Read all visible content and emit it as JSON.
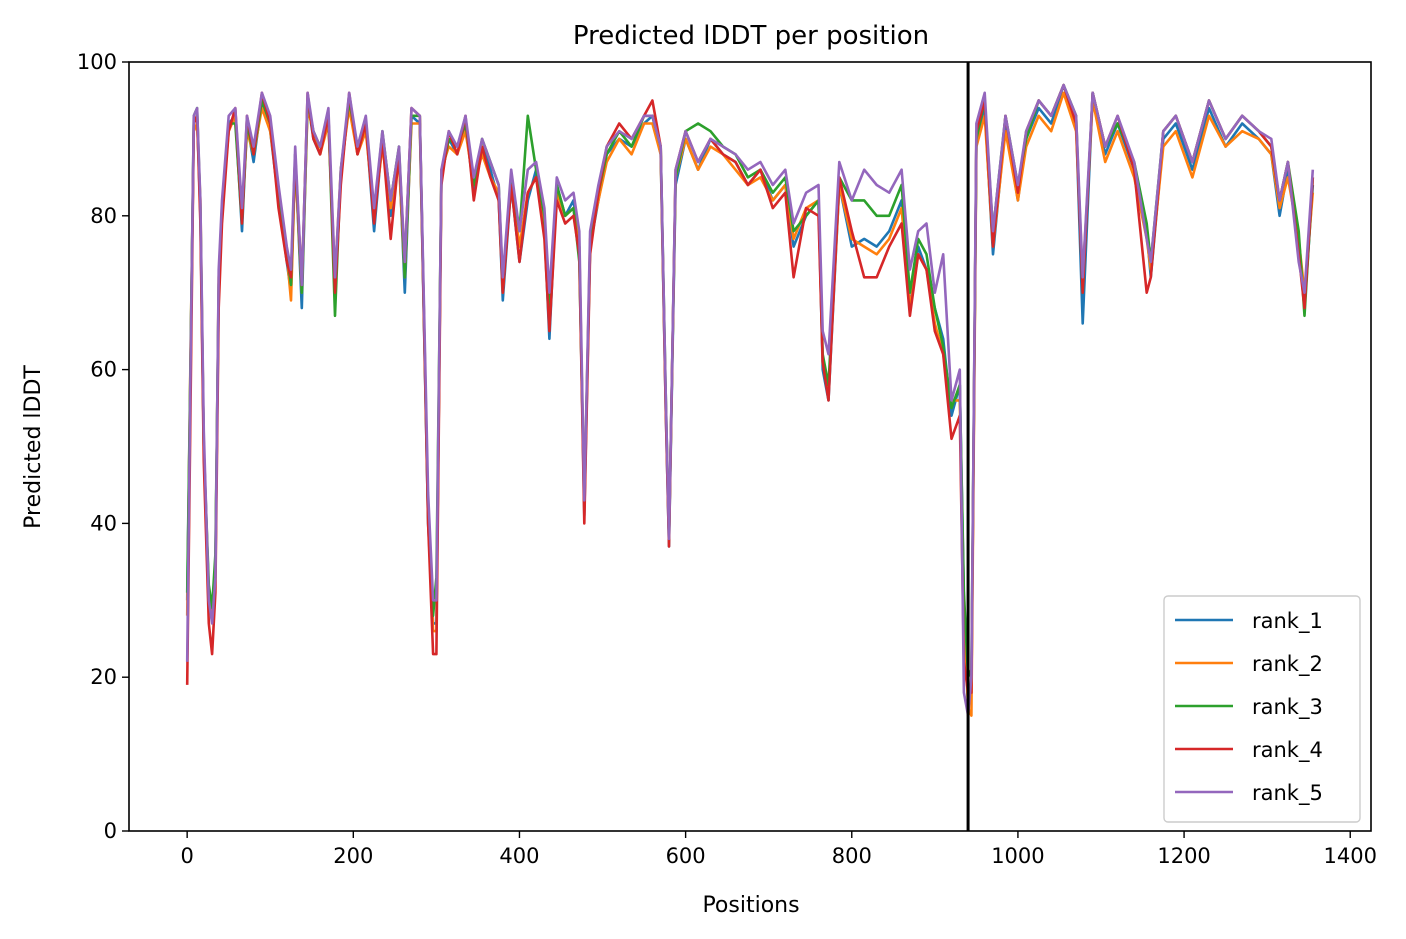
{
  "chart_data": {
    "type": "line",
    "title": "Predicted lDDT per position",
    "xlabel": "Positions",
    "ylabel": "Predicted lDDT",
    "xlim": [
      -70,
      1425
    ],
    "ylim": [
      0,
      100
    ],
    "xticks": [
      0,
      200,
      400,
      600,
      800,
      1000,
      1200,
      1400
    ],
    "yticks": [
      0,
      20,
      40,
      60,
      80,
      100
    ],
    "grid": false,
    "legend_position": "lower-right",
    "chain_boundary_x": 940,
    "colors": {
      "rank_1": "#1f77b4",
      "rank_2": "#ff7f0e",
      "rank_3": "#2ca02c",
      "rank_4": "#d62728",
      "rank_5": "#9467bd",
      "boundary": "#000000"
    },
    "x": [
      0,
      4,
      8,
      12,
      16,
      20,
      26,
      30,
      34,
      38,
      42,
      50,
      58,
      66,
      72,
      80,
      90,
      100,
      110,
      120,
      125,
      130,
      138,
      145,
      152,
      160,
      170,
      178,
      185,
      195,
      205,
      215,
      225,
      235,
      245,
      255,
      262,
      270,
      280,
      290,
      296,
      300,
      306,
      315,
      325,
      335,
      345,
      355,
      365,
      375,
      380,
      390,
      400,
      410,
      420,
      430,
      436,
      445,
      455,
      465,
      472,
      478,
      485,
      495,
      505,
      520,
      535,
      550,
      560,
      570,
      576,
      580,
      588,
      600,
      615,
      630,
      645,
      660,
      675,
      690,
      705,
      720,
      730,
      745,
      760,
      765,
      772,
      785,
      800,
      815,
      830,
      845,
      860,
      870,
      880,
      890,
      900,
      910,
      920,
      930,
      935,
      940,
      944,
      950,
      960,
      970,
      985,
      1000,
      1010,
      1025,
      1040,
      1055,
      1070,
      1078,
      1090,
      1105,
      1120,
      1140,
      1155,
      1160,
      1175,
      1190,
      1210,
      1230,
      1250,
      1270,
      1290,
      1305,
      1315,
      1325,
      1338,
      1345,
      1355
    ],
    "series": [
      {
        "name": "rank_1",
        "values": [
          30,
          60,
          92,
          93,
          80,
          50,
          31,
          28,
          35,
          70,
          80,
          92,
          93,
          78,
          92,
          87,
          95,
          91,
          82,
          74,
          70,
          88,
          68,
          95,
          90,
          88,
          93,
          70,
          85,
          95,
          88,
          92,
          78,
          90,
          80,
          88,
          70,
          93,
          92,
          40,
          27,
          27,
          85,
          90,
          88,
          92,
          83,
          89,
          86,
          82,
          69,
          84,
          74,
          82,
          86,
          78,
          64,
          84,
          80,
          82,
          76,
          41,
          76,
          82,
          88,
          90,
          89,
          92,
          93,
          88,
          55,
          37,
          84,
          90,
          86,
          90,
          88,
          87,
          84,
          86,
          82,
          84,
          76,
          80,
          82,
          60,
          56,
          84,
          76,
          77,
          76,
          78,
          82,
          68,
          76,
          73,
          68,
          64,
          54,
          58,
          30,
          16,
          18,
          90,
          94,
          75,
          92,
          82,
          90,
          94,
          92,
          97,
          92,
          66,
          96,
          88,
          92,
          86,
          78,
          72,
          90,
          92,
          86,
          94,
          89,
          92,
          90,
          88,
          80,
          86,
          76,
          68,
          84
        ]
      },
      {
        "name": "rank_2",
        "values": [
          28,
          62,
          91,
          92,
          82,
          50,
          30,
          28,
          34,
          72,
          81,
          91,
          93,
          80,
          91,
          88,
          94,
          91,
          83,
          75,
          69,
          87,
          70,
          94,
          91,
          88,
          92,
          72,
          86,
          94,
          88,
          91,
          80,
          89,
          81,
          87,
          72,
          92,
          92,
          42,
          26,
          26,
          86,
          89,
          88,
          91,
          84,
          88,
          85,
          83,
          70,
          85,
          76,
          83,
          85,
          79,
          66,
          83,
          80,
          81,
          76,
          42,
          77,
          82,
          87,
          90,
          88,
          92,
          92,
          88,
          56,
          38,
          85,
          90,
          86,
          89,
          88,
          86,
          84,
          85,
          82,
          84,
          77,
          81,
          82,
          61,
          57,
          84,
          77,
          76,
          75,
          77,
          81,
          68,
          75,
          73,
          66,
          62,
          56,
          56,
          28,
          16,
          15,
          89,
          93,
          76,
          91,
          82,
          89,
          93,
          91,
          96,
          91,
          72,
          95,
          87,
          91,
          85,
          77,
          73,
          89,
          91,
          85,
          93,
          89,
          91,
          90,
          88,
          81,
          85,
          77,
          70,
          83
        ]
      },
      {
        "name": "rank_3",
        "values": [
          31,
          61,
          93,
          94,
          81,
          50,
          32,
          29,
          36,
          71,
          81,
          92,
          92,
          79,
          92,
          88,
          95,
          92,
          83,
          75,
          71,
          88,
          70,
          95,
          91,
          89,
          93,
          67,
          86,
          95,
          89,
          92,
          80,
          91,
          82,
          89,
          72,
          93,
          93,
          41,
          28,
          33,
          85,
          90,
          89,
          92,
          84,
          90,
          87,
          84,
          71,
          85,
          78,
          93,
          86,
          80,
          68,
          84,
          80,
          81,
          74,
          43,
          76,
          83,
          88,
          91,
          89,
          93,
          93,
          89,
          57,
          38,
          85,
          91,
          92,
          91,
          89,
          88,
          85,
          86,
          83,
          85,
          78,
          80,
          82,
          62,
          58,
          85,
          82,
          82,
          80,
          80,
          84,
          70,
          77,
          75,
          68,
          63,
          55,
          58,
          31,
          20,
          21,
          90,
          95,
          78,
          93,
          84,
          90,
          95,
          93,
          97,
          93,
          70,
          96,
          89,
          92,
          87,
          79,
          74,
          91,
          93,
          87,
          95,
          90,
          93,
          91,
          89,
          82,
          87,
          78,
          67,
          85
        ]
      },
      {
        "name": "rank_4",
        "values": [
          19,
          55,
          92,
          93,
          79,
          48,
          27,
          23,
          31,
          68,
          79,
          91,
          94,
          79,
          93,
          88,
          96,
          92,
          81,
          74,
          72,
          88,
          71,
          96,
          90,
          88,
          93,
          70,
          84,
          96,
          88,
          92,
          79,
          90,
          77,
          88,
          74,
          94,
          93,
          40,
          23,
          23,
          84,
          91,
          88,
          93,
          82,
          89,
          85,
          82,
          70,
          84,
          74,
          83,
          85,
          77,
          65,
          82,
          79,
          80,
          75,
          40,
          75,
          83,
          89,
          92,
          90,
          93,
          95,
          89,
          55,
          37,
          86,
          91,
          87,
          90,
          88,
          87,
          84,
          86,
          81,
          83,
          72,
          81,
          80,
          61,
          56,
          85,
          78,
          72,
          72,
          76,
          79,
          67,
          75,
          73,
          65,
          62,
          51,
          54,
          22,
          18,
          18,
          91,
          95,
          76,
          93,
          83,
          91,
          95,
          93,
          97,
          92,
          70,
          96,
          89,
          93,
          86,
          70,
          72,
          91,
          93,
          87,
          95,
          90,
          93,
          91,
          89,
          82,
          87,
          75,
          68,
          85
        ]
      },
      {
        "name": "rank_5",
        "values": [
          22,
          60,
          93,
          94,
          82,
          52,
          30,
          27,
          33,
          73,
          82,
          93,
          94,
          81,
          93,
          89,
          96,
          93,
          84,
          76,
          73,
          89,
          71,
          96,
          91,
          89,
          94,
          72,
          86,
          96,
          89,
          93,
          81,
          91,
          82,
          89,
          74,
          94,
          93,
          44,
          30,
          30,
          86,
          91,
          89,
          93,
          85,
          90,
          87,
          84,
          72,
          86,
          78,
          86,
          87,
          81,
          70,
          85,
          82,
          83,
          78,
          43,
          78,
          84,
          89,
          91,
          90,
          93,
          93,
          89,
          57,
          38,
          86,
          91,
          87,
          90,
          89,
          88,
          86,
          87,
          84,
          86,
          79,
          83,
          84,
          65,
          62,
          87,
          82,
          86,
          84,
          83,
          86,
          73,
          78,
          79,
          70,
          75,
          56,
          60,
          18,
          15,
          20,
          92,
          96,
          78,
          93,
          84,
          91,
          95,
          93,
          97,
          93,
          72,
          96,
          89,
          93,
          87,
          77,
          74,
          91,
          93,
          87,
          95,
          90,
          93,
          91,
          90,
          82,
          87,
          74,
          70,
          86
        ]
      }
    ]
  }
}
